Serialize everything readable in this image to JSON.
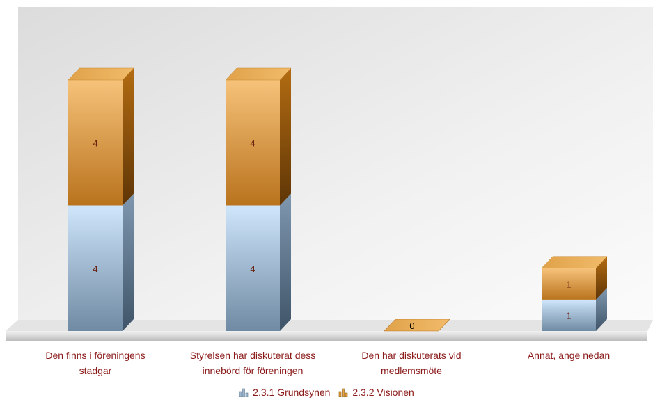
{
  "chart_data": {
    "type": "bar",
    "stacked": true,
    "categories": [
      "Den finns i föreningens stadgar",
      "Styrelsen har diskuterat dess innebörd för föreningen",
      "Den har diskuterats vid medlemsmöte",
      "Annat, ange nedan"
    ],
    "series": [
      {
        "name": "2.3.1 Grundsynen",
        "values": [
          4,
          4,
          0,
          1
        ],
        "color": "#9fb8d0"
      },
      {
        "name": "2.3.2 Visionen",
        "values": [
          4,
          4,
          0,
          1
        ],
        "color": "#d08a2a"
      }
    ],
    "ylim": [
      0,
      9
    ],
    "legend": "bottom-center",
    "grid": false
  },
  "labels": {
    "cat0_line1": "Den finns i föreningens",
    "cat0_line2": "stadgar",
    "cat1_line1": "Styrelsen har diskuterat dess",
    "cat1_line2": "innebörd för föreningen",
    "cat2_line1": "Den har diskuterats vid",
    "cat2_line2": "medlemsmöte",
    "cat3_line1": "Annat, ange nedan",
    "legend0": "2.3.1 Grundsynen",
    "legend1": "2.3.2 Visionen"
  }
}
